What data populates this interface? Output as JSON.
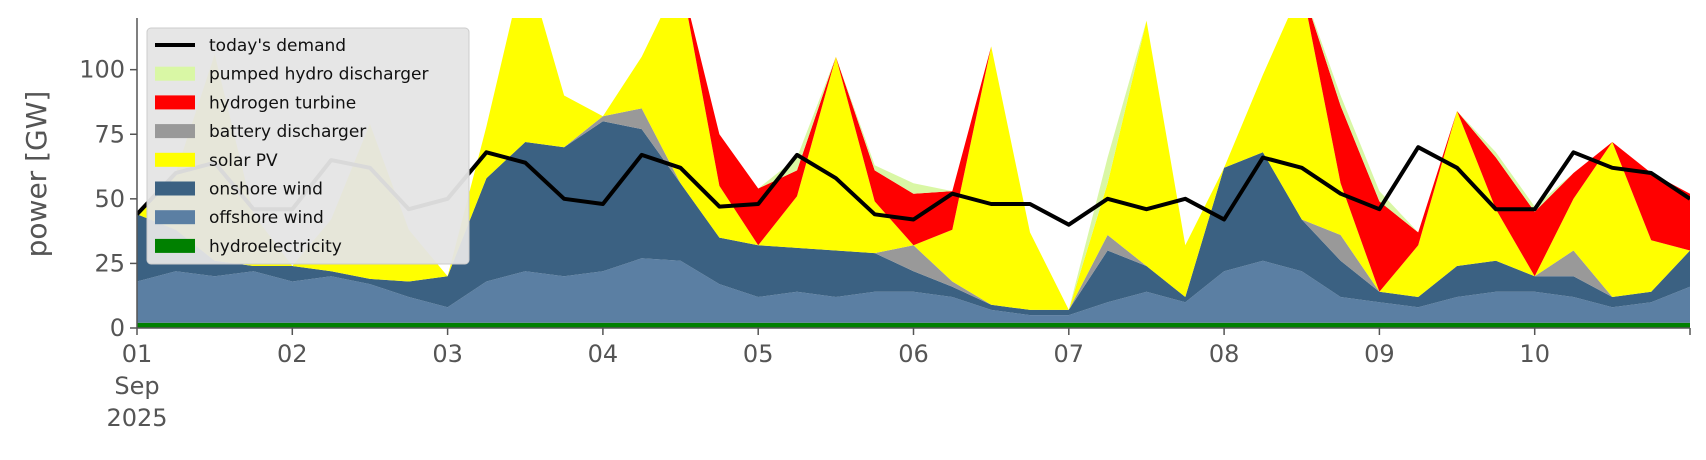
{
  "chart_data": {
    "type": "area",
    "ylabel": "power [GW]",
    "xlabel": "",
    "ylim": [
      0,
      120
    ],
    "y_ticks": [
      "0",
      "25",
      "50",
      "75",
      "100"
    ],
    "x_ticks": [
      {
        "day": 1,
        "lines": [
          "01",
          "Sep",
          "2025"
        ]
      },
      {
        "day": 2,
        "lines": [
          "02"
        ]
      },
      {
        "day": 3,
        "lines": [
          "03"
        ]
      },
      {
        "day": 4,
        "lines": [
          "04"
        ]
      },
      {
        "day": 5,
        "lines": [
          "05"
        ]
      },
      {
        "day": 6,
        "lines": [
          "06"
        ]
      },
      {
        "day": 7,
        "lines": [
          "07"
        ]
      },
      {
        "day": 8,
        "lines": [
          "08"
        ]
      },
      {
        "day": 9,
        "lines": [
          "09"
        ]
      },
      {
        "day": 10,
        "lines": [
          "10"
        ]
      }
    ],
    "grid": false,
    "legend_position": "top-left",
    "x": [
      "2025-09-01 00:00",
      "2025-09-01 06:00",
      "2025-09-01 12:00",
      "2025-09-01 18:00",
      "2025-09-02 00:00",
      "2025-09-02 06:00",
      "2025-09-02 12:00",
      "2025-09-02 18:00",
      "2025-09-03 00:00",
      "2025-09-03 06:00",
      "2025-09-03 12:00",
      "2025-09-03 18:00",
      "2025-09-04 00:00",
      "2025-09-04 06:00",
      "2025-09-04 12:00",
      "2025-09-04 18:00",
      "2025-09-05 00:00",
      "2025-09-05 06:00",
      "2025-09-05 12:00",
      "2025-09-05 18:00",
      "2025-09-06 00:00",
      "2025-09-06 06:00",
      "2025-09-06 12:00",
      "2025-09-06 18:00",
      "2025-09-07 00:00",
      "2025-09-07 06:00",
      "2025-09-07 12:00",
      "2025-09-07 18:00",
      "2025-09-08 00:00",
      "2025-09-08 06:00",
      "2025-09-08 12:00",
      "2025-09-08 18:00",
      "2025-09-09 00:00",
      "2025-09-09 06:00",
      "2025-09-09 12:00",
      "2025-09-09 18:00",
      "2025-09-10 00:00",
      "2025-09-10 06:00",
      "2025-09-10 12:00",
      "2025-09-10 18:00",
      "2025-09-11 00:00"
    ],
    "series": [
      {
        "name": "hydroelectricity",
        "color": "#008000",
        "values": [
          2,
          2,
          2,
          2,
          2,
          2,
          2,
          2,
          2,
          2,
          2,
          2,
          2,
          2,
          2,
          2,
          2,
          2,
          2,
          2,
          2,
          2,
          2,
          2,
          2,
          2,
          2,
          2,
          2,
          2,
          2,
          2,
          2,
          2,
          2,
          2,
          2,
          2,
          2,
          2,
          2
        ]
      },
      {
        "name": "offshore wind",
        "color": "#5b7fa3",
        "values": [
          16,
          20,
          18,
          20,
          16,
          18,
          15,
          10,
          6,
          16,
          20,
          18,
          20,
          25,
          24,
          15,
          10,
          12,
          10,
          12,
          12,
          10,
          5,
          3,
          3,
          8,
          12,
          8,
          20,
          24,
          20,
          10,
          8,
          6,
          10,
          12,
          12,
          10,
          6,
          8,
          14
        ]
      },
      {
        "name": "onshore wind",
        "color": "#3b6182",
        "values": [
          26,
          16,
          6,
          2,
          6,
          2,
          2,
          6,
          12,
          40,
          50,
          50,
          58,
          50,
          30,
          18,
          20,
          17,
          18,
          15,
          8,
          4,
          2,
          2,
          2,
          20,
          10,
          2,
          40,
          42,
          20,
          14,
          4,
          4,
          12,
          12,
          6,
          8,
          4,
          4,
          14
        ]
      },
      {
        "name": "battery discharger",
        "color": "#999999",
        "values": [
          0,
          0,
          0,
          0,
          0,
          0,
          0,
          0,
          0,
          0,
          0,
          0,
          2,
          8,
          0,
          0,
          0,
          0,
          0,
          0,
          10,
          2,
          0,
          0,
          0,
          6,
          0,
          0,
          0,
          0,
          0,
          10,
          0,
          0,
          0,
          0,
          0,
          10,
          0,
          0,
          0
        ]
      },
      {
        "name": "solar PV",
        "color": "#ffff00",
        "values": [
          0,
          22,
          80,
          20,
          0,
          20,
          60,
          20,
          0,
          20,
          70,
          20,
          0,
          20,
          80,
          20,
          0,
          20,
          75,
          20,
          0,
          20,
          100,
          30,
          0,
          20,
          95,
          20,
          0,
          30,
          90,
          20,
          0,
          20,
          60,
          20,
          0,
          20,
          60,
          20,
          0
        ]
      },
      {
        "name": "hydrogen turbine",
        "color": "#ff0000",
        "values": [
          0,
          0,
          0,
          0,
          0,
          0,
          0,
          0,
          0,
          0,
          0,
          0,
          0,
          0,
          0,
          20,
          22,
          10,
          0,
          12,
          20,
          15,
          0,
          0,
          0,
          0,
          0,
          0,
          0,
          0,
          0,
          30,
          35,
          5,
          0,
          20,
          25,
          10,
          0,
          26,
          22
        ]
      },
      {
        "name": "pumped hydro discharger",
        "color": "#d9f7a5",
        "values": [
          0,
          0,
          0,
          0,
          0,
          0,
          0,
          0,
          0,
          0,
          0,
          0,
          0,
          0,
          0,
          0,
          0,
          5,
          0,
          2,
          4,
          0,
          0,
          0,
          0,
          10,
          0,
          0,
          0,
          0,
          0,
          4,
          4,
          0,
          0,
          2,
          2,
          0,
          0,
          0,
          0
        ]
      }
    ],
    "demand": {
      "name": "today's demand",
      "color": "#000000",
      "values": [
        44,
        60,
        64,
        46,
        46,
        65,
        62,
        46,
        50,
        68,
        64,
        50,
        48,
        67,
        62,
        47,
        48,
        67,
        58,
        44,
        42,
        52,
        48,
        48,
        40,
        50,
        46,
        50,
        42,
        66,
        62,
        52,
        46,
        70,
        62,
        46,
        46,
        68,
        62,
        60,
        50
      ]
    },
    "legend_entries": [
      "today's demand",
      "pumped hydro discharger",
      "hydrogen turbine",
      "battery discharger",
      "solar PV",
      "onshore wind",
      "offshore wind",
      "hydroelectricity"
    ]
  }
}
